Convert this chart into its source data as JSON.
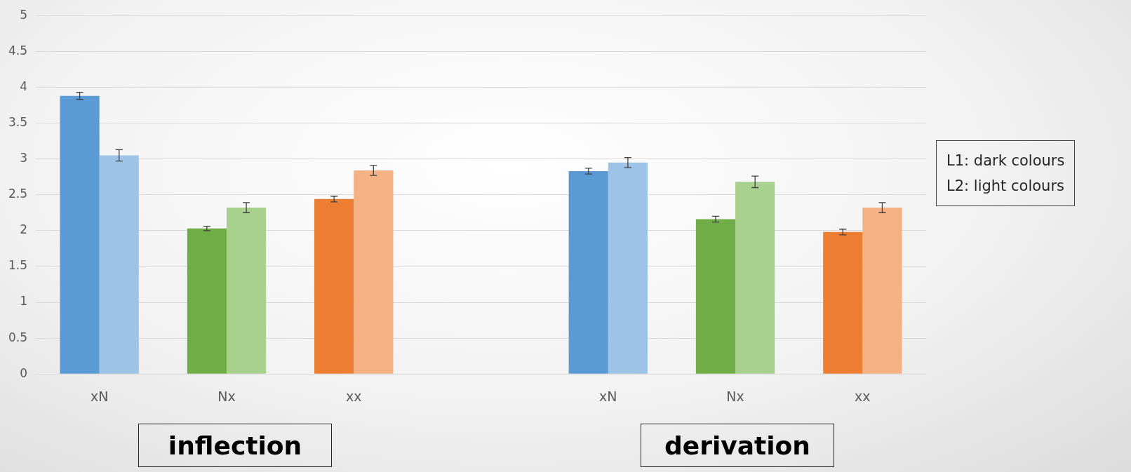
{
  "chart_data": {
    "type": "bar",
    "categories": [
      "xN",
      "Nx",
      "xx",
      null,
      "xN",
      "Nx",
      "xx"
    ],
    "series": [
      {
        "colors": [
          "#5b9bd5",
          "#70ad47",
          "#ed7d31",
          null,
          "#5b9bd5",
          "#70ad47",
          "#ed7d31"
        ],
        "values": [
          3.88,
          2.03,
          2.44,
          null,
          2.83,
          2.16,
          1.98
        ],
        "errors": [
          0.05,
          0.03,
          0.04,
          null,
          0.04,
          0.04,
          0.04
        ]
      },
      {
        "colors": [
          "#9dc3e6",
          "#a9d18e",
          "#f4b183",
          null,
          "#9dc3e6",
          "#a9d18e",
          "#f4b183"
        ],
        "values": [
          3.05,
          2.32,
          2.84,
          null,
          2.95,
          2.68,
          2.32
        ],
        "errors": [
          0.08,
          0.07,
          0.07,
          null,
          0.07,
          0.08,
          0.07
        ]
      }
    ],
    "ylim": [
      0,
      5
    ],
    "yticks": [
      0,
      0.5,
      1,
      1.5,
      2,
      2.5,
      3,
      3.5,
      4,
      4.5,
      5
    ],
    "grid": "y",
    "annotations": [
      "L1: dark colours",
      "L2: light colours",
      "inflection",
      "derivation"
    ]
  }
}
